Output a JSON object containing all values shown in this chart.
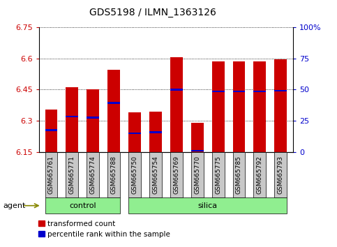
{
  "title": "GDS5198 / ILMN_1363126",
  "samples": [
    "GSM665761",
    "GSM665771",
    "GSM665774",
    "GSM665788",
    "GSM665750",
    "GSM665754",
    "GSM665769",
    "GSM665770",
    "GSM665775",
    "GSM665785",
    "GSM665792",
    "GSM665793"
  ],
  "groups": [
    "control",
    "control",
    "control",
    "control",
    "silica",
    "silica",
    "silica",
    "silica",
    "silica",
    "silica",
    "silica",
    "silica"
  ],
  "transformed_count": [
    6.355,
    6.46,
    6.45,
    6.545,
    6.34,
    6.345,
    6.605,
    6.29,
    6.585,
    6.585,
    6.585,
    6.595
  ],
  "percentile_rank": [
    6.255,
    6.32,
    6.315,
    6.385,
    6.24,
    6.245,
    6.45,
    6.155,
    6.44,
    6.44,
    6.44,
    6.445
  ],
  "ymin": 6.15,
  "ymax": 6.75,
  "yticks": [
    6.15,
    6.3,
    6.45,
    6.6,
    6.75
  ],
  "ytick_labels": [
    "6.15",
    "6.3",
    "6.45",
    "6.6",
    "6.75"
  ],
  "right_yticks": [
    0,
    25,
    50,
    75,
    100
  ],
  "right_ytick_labels": [
    "0",
    "25",
    "50",
    "75",
    "100%"
  ],
  "bar_color": "#cc0000",
  "percentile_color": "#0000cc",
  "group_color": "#90ee90",
  "label_box_color": "#c8c8c8",
  "bar_width": 0.6,
  "control_indices": [
    0,
    1,
    2,
    3
  ],
  "silica_indices": [
    4,
    5,
    6,
    7,
    8,
    9,
    10,
    11
  ],
  "control_label": "control",
  "silica_label": "silica",
  "agent_label": "agent",
  "legend_transformed": "transformed count",
  "legend_percentile": "percentile rank within the sample",
  "plot_bgcolor": "#ffffff"
}
